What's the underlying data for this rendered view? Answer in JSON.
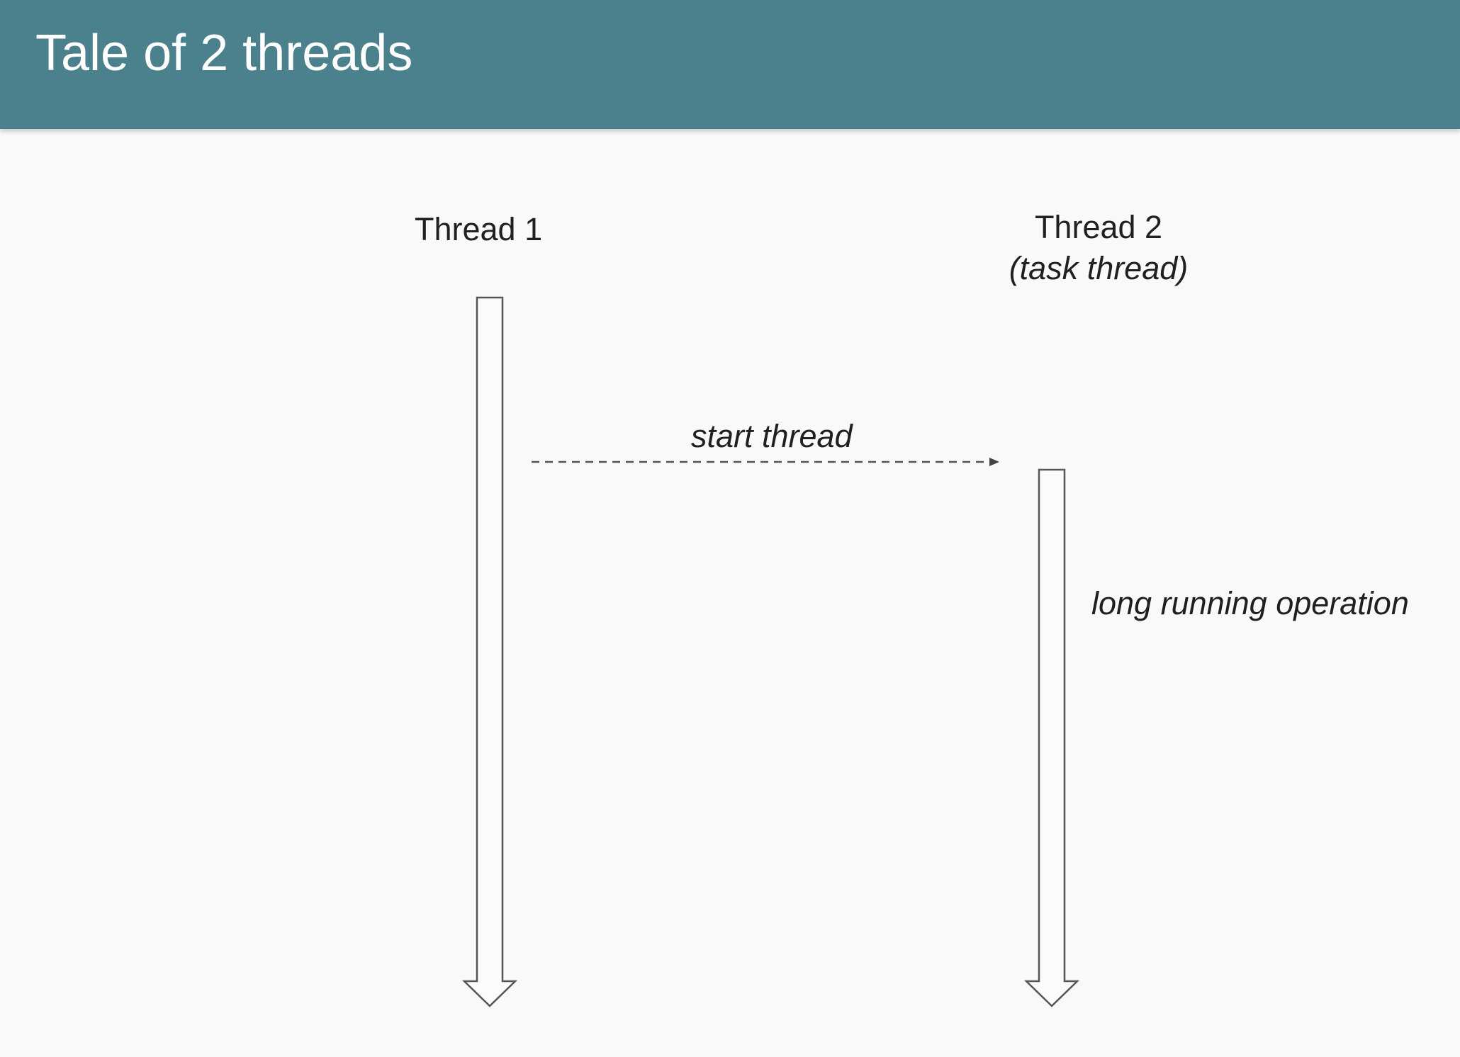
{
  "slide": {
    "title": "Tale of 2 threads",
    "header_color": "#4a818c"
  },
  "diagram": {
    "threads": [
      {
        "label": "Thread 1",
        "sublabel": ""
      },
      {
        "label": "Thread 2",
        "sublabel": "(task thread)"
      }
    ],
    "message": {
      "label": "start thread",
      "from": "Thread 1",
      "to": "Thread 2",
      "style": "dashed"
    },
    "operation": {
      "label": "long running operation",
      "thread": "Thread 2"
    }
  }
}
